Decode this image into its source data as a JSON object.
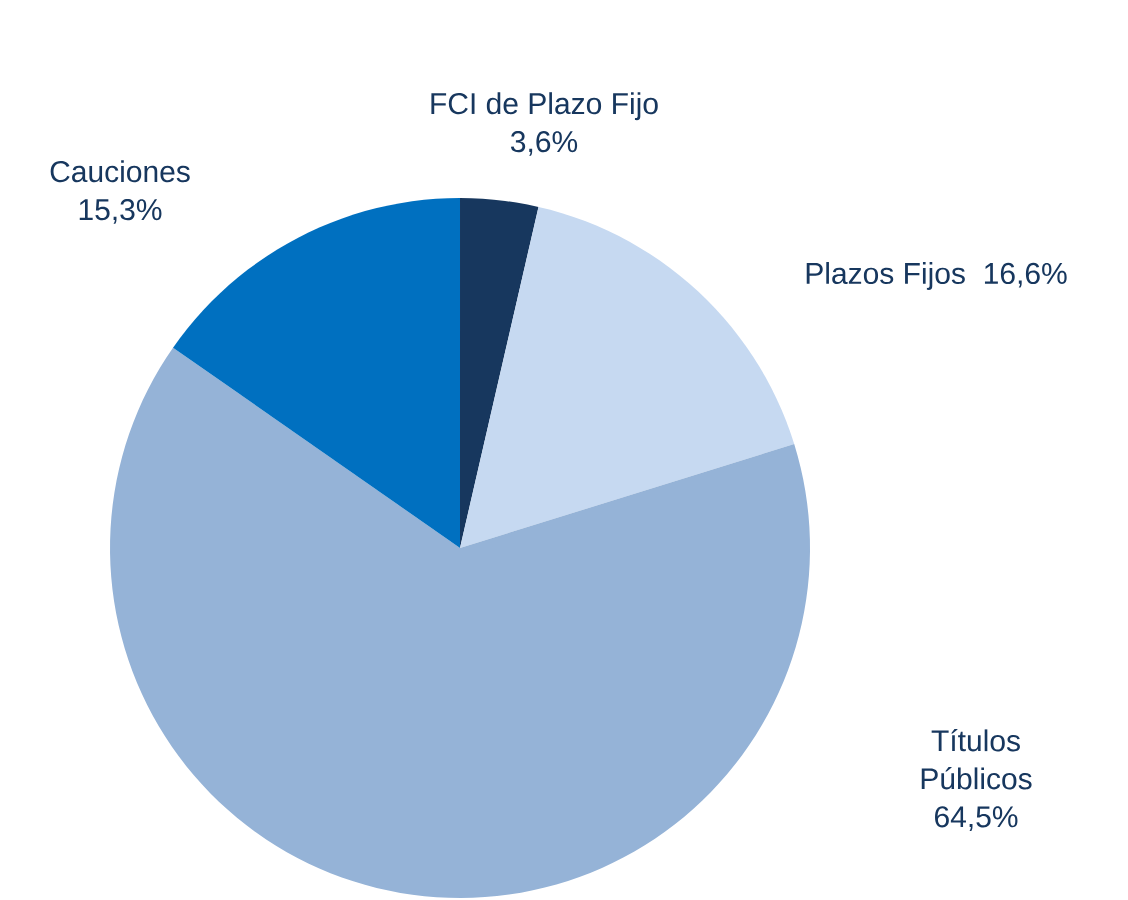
{
  "chart_data": {
    "type": "pie",
    "categories": [
      "FCI de Plazo Fijo",
      "Plazos Fijos",
      "Títulos Públicos",
      "Cauciones"
    ],
    "values": [
      3.6,
      16.6,
      64.5,
      15.3
    ],
    "value_labels": [
      "3,6%",
      "16,6%",
      "64,5%",
      "15,3%"
    ],
    "colors": [
      "#17375e",
      "#c6d9f1",
      "#95b3d7",
      "#0070c0"
    ]
  }
}
